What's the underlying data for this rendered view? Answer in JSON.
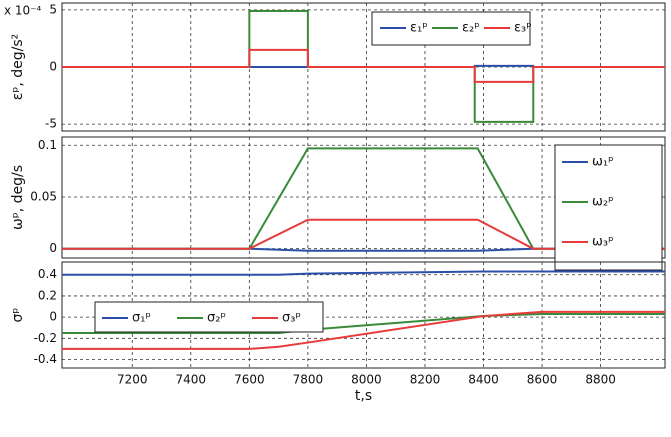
{
  "chart_data": [
    {
      "type": "line",
      "ylabel": "εᵖ, deg/s²",
      "multiplier": "x 10⁻⁴",
      "x": [
        6960,
        7600,
        7600,
        7800,
        7800,
        8370,
        8370,
        8570,
        8570,
        9020
      ],
      "series": [
        {
          "name": "ε₁ᵖ",
          "color": "#2b4ea8",
          "values": [
            0,
            0,
            0,
            0,
            0,
            0,
            0.1,
            0.1,
            0,
            0
          ]
        },
        {
          "name": "ε₂ᵖ",
          "color": "#3a8a3a",
          "values": [
            0,
            0,
            4.9,
            4.9,
            0,
            0,
            -4.8,
            -4.8,
            0,
            0
          ]
        },
        {
          "name": "ε₃ᵖ",
          "color": "#e83a3a",
          "values": [
            0,
            0,
            1.5,
            1.5,
            0,
            0,
            -1.3,
            -1.3,
            0,
            0
          ]
        }
      ],
      "xlim": [
        6960,
        9020
      ],
      "xticks": [
        7200,
        7400,
        7600,
        7800,
        8000,
        8200,
        8400,
        8600,
        8800
      ],
      "show_xtick_labels": false,
      "ylim": [
        -5.6,
        5.6
      ],
      "yticks": [
        -5,
        0,
        5
      ],
      "grid": true,
      "legend": "upper right"
    },
    {
      "type": "line",
      "ylabel": "ωᵖ, deg/s",
      "x": [
        6960,
        7600,
        7800,
        8380,
        8570,
        9020
      ],
      "series": [
        {
          "name": "ω₁ᵖ",
          "color": "#2b4ea8",
          "values": [
            0,
            0,
            -0.002,
            -0.002,
            0,
            0
          ]
        },
        {
          "name": "ω₂ᵖ",
          "color": "#3a8a3a",
          "values": [
            0,
            0,
            0.097,
            0.097,
            0,
            0
          ]
        },
        {
          "name": "ω₃ᵖ",
          "color": "#e83a3a",
          "values": [
            0,
            0,
            0.028,
            0.028,
            0,
            0
          ]
        }
      ],
      "xlim": [
        6960,
        9020
      ],
      "xticks": [
        7200,
        7400,
        7600,
        7800,
        8000,
        8200,
        8400,
        8600,
        8800
      ],
      "show_xtick_labels": false,
      "ylim": [
        -0.009,
        0.108
      ],
      "yticks": [
        0,
        0.05,
        0.1
      ],
      "grid": true,
      "legend": "right"
    },
    {
      "type": "line",
      "ylabel": "σᵖ",
      "xlabel": "t,s",
      "x": [
        6960,
        7600,
        7700,
        7800,
        8400,
        8600,
        9020
      ],
      "series": [
        {
          "name": "σ₁ᵖ",
          "color": "#2b4ea8",
          "values": [
            0.4,
            0.4,
            0.4,
            0.41,
            0.43,
            0.43,
            0.43
          ]
        },
        {
          "name": "σ₂ᵖ",
          "color": "#3a8a3a",
          "values": [
            -0.15,
            -0.15,
            -0.15,
            -0.12,
            0.01,
            0.03,
            0.03
          ]
        },
        {
          "name": "σ₃ᵖ",
          "color": "#e83a3a",
          "values": [
            -0.3,
            -0.3,
            -0.28,
            -0.24,
            0.01,
            0.05,
            0.05
          ]
        }
      ],
      "xlim": [
        6960,
        9020
      ],
      "xticks": [
        7200,
        7400,
        7600,
        7800,
        8000,
        8200,
        8400,
        8600,
        8800
      ],
      "show_xtick_labels": true,
      "ylim": [
        -0.48,
        0.52
      ],
      "yticks": [
        -0.4,
        -0.2,
        0,
        0.2,
        0.4
      ],
      "grid": true,
      "legend": "center left"
    }
  ]
}
